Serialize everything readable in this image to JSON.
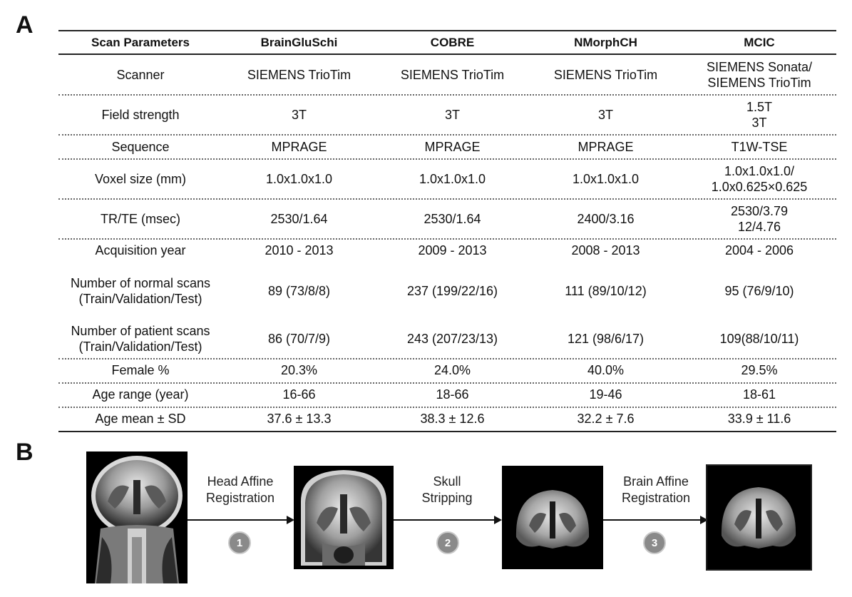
{
  "panels": {
    "a": "A",
    "b": "B"
  },
  "table": {
    "headers": [
      "Scan Parameters",
      "BrainGluSchi",
      "COBRE",
      "NMorphCH",
      "MCIC"
    ],
    "rows": [
      [
        "Scanner",
        "SIEMENS TrioTim",
        "SIEMENS TrioTim",
        "SIEMENS TrioTim",
        "SIEMENS Sonata/\nSIEMENS TrioTim"
      ],
      [
        "Field strength",
        "3T",
        "3T",
        "3T",
        "1.5T\n3T"
      ],
      [
        "Sequence",
        "MPRAGE",
        "MPRAGE",
        "MPRAGE",
        "T1W-TSE"
      ],
      [
        "Voxel size (mm)",
        "1.0x1.0x1.0",
        "1.0x1.0x1.0",
        "1.0x1.0x1.0",
        "1.0x1.0x1.0/\n1.0x0.625×0.625"
      ],
      [
        "TR/TE (msec)",
        "2530/1.64",
        "2530/1.64",
        "2400/3.16",
        "2530/3.79\n12/4.76"
      ],
      [
        "Acquisition year",
        "2010 - 2013",
        "2009 - 2013",
        "2008 - 2013",
        "2004 - 2006"
      ],
      [
        "Number of normal scans\n(Train/Validation/Test)",
        "89 (73/8/8)",
        "237 (199/22/16)",
        "111 (89/10/12)",
        "95 (76/9/10)"
      ],
      [
        "Number of patient scans\n(Train/Validation/Test)",
        "86 (70/7/9)",
        "243 (207/23/13)",
        "121 (98/6/17)",
        "109(88/10/11)"
      ],
      [
        "Female %",
        "20.3%",
        "24.0%",
        "40.0%",
        "29.5%"
      ],
      [
        "Age range (year)",
        "16-66",
        "18-66",
        "19-46",
        "18-61"
      ],
      [
        "Age mean ± SD",
        "37.6  ± 13.3",
        "38.3 ± 12.6",
        "32.2  ± 7.6",
        "33.9 ± 11.6"
      ]
    ]
  },
  "pipeline": {
    "steps": [
      {
        "label": "Head Affine\nRegistration",
        "number": "1"
      },
      {
        "label": "Skull\nStripping",
        "number": "2"
      },
      {
        "label": "Brain Affine\nRegistration",
        "number": "3"
      }
    ]
  }
}
